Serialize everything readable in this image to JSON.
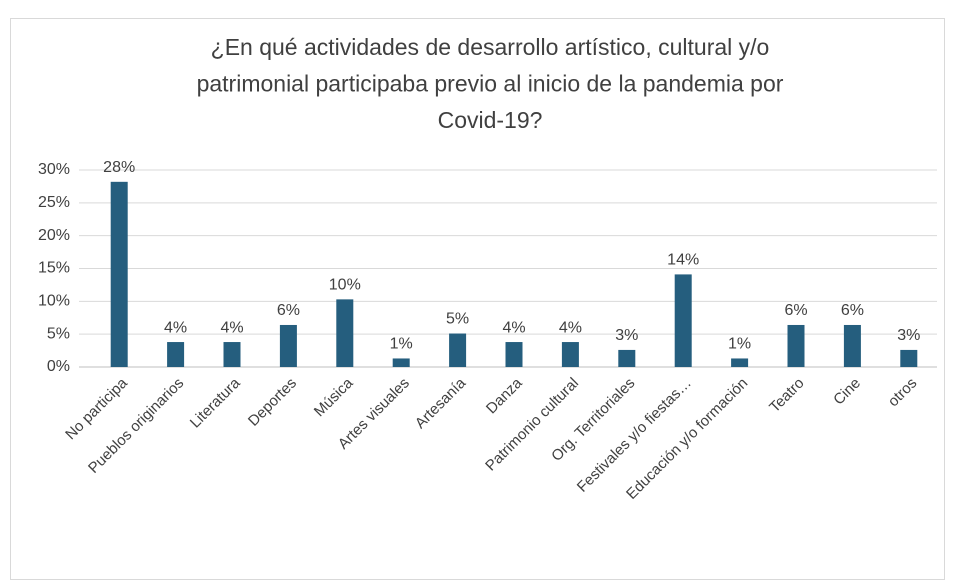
{
  "chart_data": {
    "type": "bar",
    "title": [
      "¿En qué actividades de desarrollo artístico, cultural y/o",
      "patrimonial participaba previo al inicio de la pandemia por",
      "Covid-19?"
    ],
    "categories": [
      "No participa",
      "Pueblos originarios",
      "Literatura",
      "Deportes",
      "Música",
      "Artes visuales",
      "Artesanía",
      "Danza",
      "Patrimonio cultural",
      "Org. Territoriales",
      "Festivales y/o fiestas…",
      "Educación y/o formación",
      "Teatro",
      "Cine",
      "otros"
    ],
    "values": [
      28.2,
      3.8,
      3.8,
      6.4,
      10.3,
      1.3,
      5.1,
      3.8,
      3.8,
      2.6,
      14.1,
      1.3,
      6.4,
      6.4,
      2.6
    ],
    "value_labels": [
      "28%",
      "4%",
      "4%",
      "6%",
      "10%",
      "1%",
      "5%",
      "4%",
      "4%",
      "3%",
      "14%",
      "1%",
      "6%",
      "6%",
      "3%"
    ],
    "color": "#255e7e",
    "ylim": [
      0,
      30
    ],
    "yticks": [
      {
        "value": 0,
        "label": "0%"
      },
      {
        "value": 5,
        "label": "5%"
      },
      {
        "value": 10,
        "label": "10%"
      },
      {
        "value": 15,
        "label": "15%"
      },
      {
        "value": 20,
        "label": "20%"
      },
      {
        "value": 25,
        "label": "25%"
      },
      {
        "value": 30,
        "label": "30%"
      }
    ],
    "grid": true
  }
}
